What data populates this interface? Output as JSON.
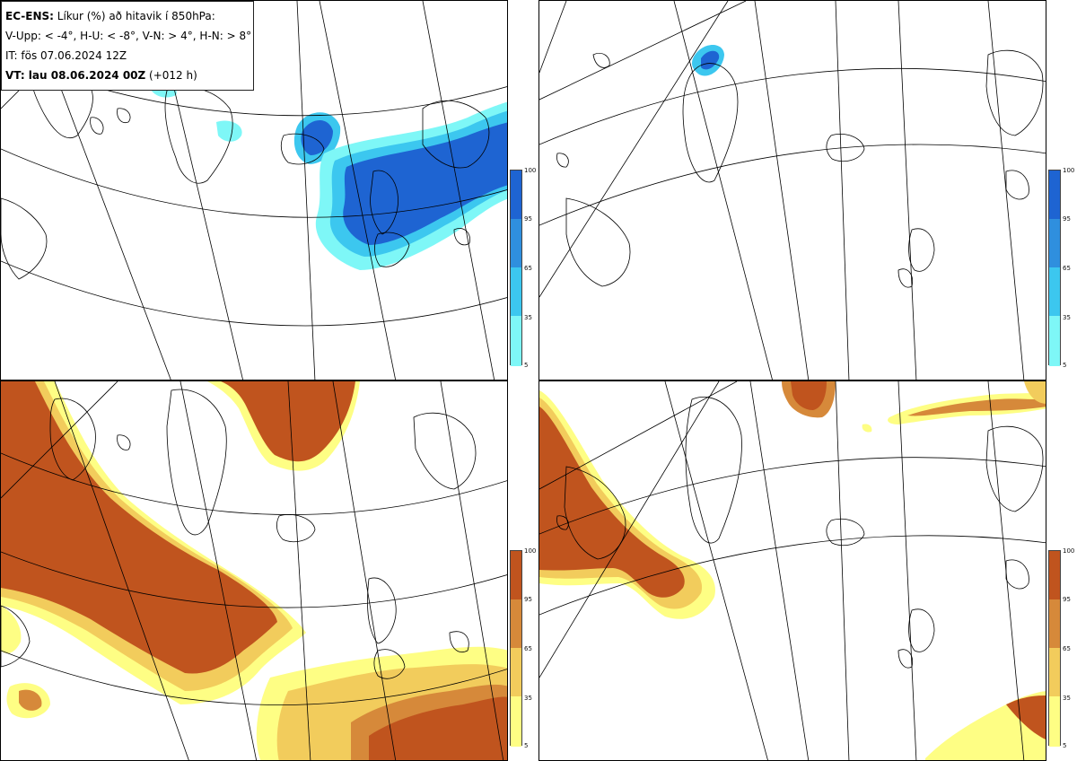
{
  "header": {
    "line1_bold": "EC-ENS:",
    "line1_rest": "Líkur (%) að hitavik í 850hPa:",
    "line2": "V-Upp: < -4°, H-U: < -8°, V-N: > 4°, H-N: > 8°",
    "line3": "IT: fös 07.06.2024 12Z",
    "line4_bold": "VT: lau 08.06.2024 00Z",
    "line4_rest": "(+012 h)"
  },
  "colorbar_ticks": [
    "100",
    "95",
    "65",
    "35",
    "5"
  ],
  "colors": {
    "cold_scale": [
      "#7ef7f7",
      "#3cc7ef",
      "#2f8fde",
      "#1e64d2"
    ],
    "warm_scale": [
      "#fefe84",
      "#f2cc5c",
      "#d6893a",
      "#c0541e"
    ],
    "coast": "#000000",
    "grid": "#000000"
  },
  "panels": [
    {
      "id": "V-Upp",
      "scale": "cold"
    },
    {
      "id": "H-U",
      "scale": "cold"
    },
    {
      "id": "V-N",
      "scale": "warm"
    },
    {
      "id": "H-N",
      "scale": "warm"
    }
  ]
}
